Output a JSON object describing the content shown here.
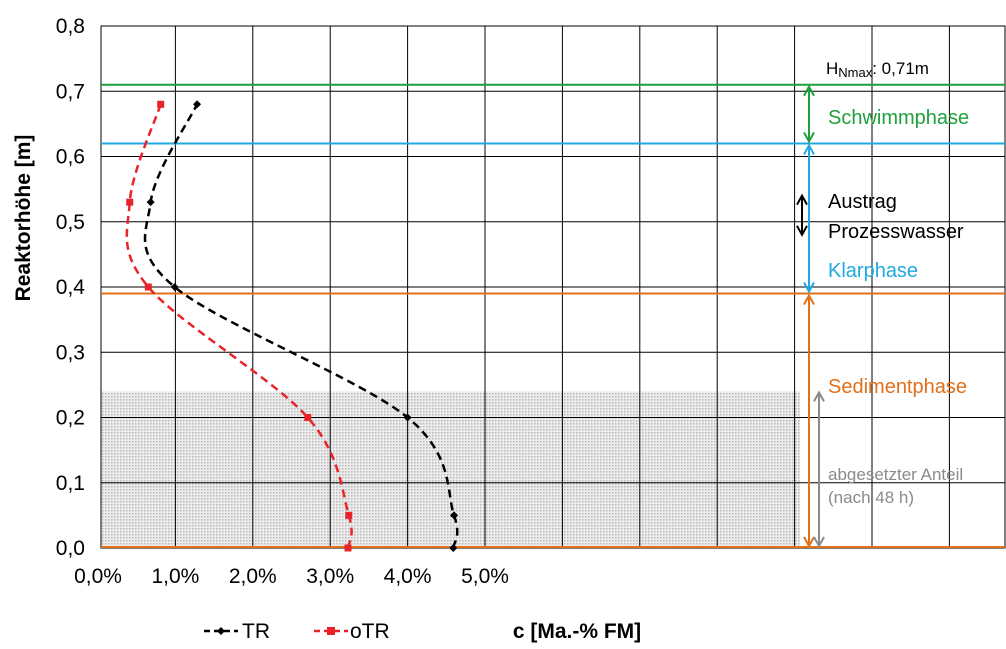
{
  "chart_data": {
    "type": "line",
    "xlabel": "c [Ma.-% FM]",
    "ylabel": "Reaktorhöhe [m]",
    "xlim": [
      0,
      0.05
    ],
    "ylim": [
      0,
      0.8
    ],
    "x_ticks": [
      "0,0%",
      "1,0%",
      "2,0%",
      "3,0%",
      "4,0%",
      "5,0%"
    ],
    "y_ticks": [
      "0,0",
      "0,1",
      "0,2",
      "0,3",
      "0,4",
      "0,5",
      "0,6",
      "0,7",
      "0,8"
    ],
    "grid": true,
    "legend_position": "bottom-left",
    "series": [
      {
        "name": "TR",
        "color": "#000000",
        "marker": "diamond",
        "points": [
          [
            0.0459,
            0.0
          ],
          [
            0.046,
            0.05
          ],
          [
            0.04,
            0.2
          ],
          [
            0.0099,
            0.4
          ],
          [
            0.0068,
            0.53
          ],
          [
            0.0128,
            0.68
          ]
        ]
      },
      {
        "name": "oTR",
        "color": "#e8232a",
        "marker": "square",
        "points": [
          [
            0.0323,
            0.0
          ],
          [
            0.0324,
            0.05
          ],
          [
            0.0271,
            0.2
          ],
          [
            0.0065,
            0.4
          ],
          [
            0.0041,
            0.53
          ],
          [
            0.0081,
            0.68
          ]
        ]
      }
    ],
    "annotations": {
      "hmax_label": "HNmax: 0,71m",
      "hmax_main": "H",
      "hmax_sub": "Nmax",
      "hmax_value": ": 0,71m",
      "hmax_y": 0.71,
      "klar_y": 0.62,
      "sediment_y": 0.39,
      "bottom_y": 0.0,
      "settled_y": 0.24,
      "schwimm": "Schwimmphase",
      "austrag_line1": "Austrag",
      "austrag_line2": "Prozesswasser",
      "klar": "Klarphase",
      "sediment": "Sedimentphase",
      "abgesetzt_line1": "abgesetzter Anteil",
      "abgesetzt_line2": "(nach 48 h)"
    },
    "colors": {
      "green": "#1fa03c",
      "blue": "#1fa9e0",
      "orange": "#e27018",
      "gray": "#8a8a8a",
      "red": "#e8232a",
      "black": "#000000"
    }
  }
}
